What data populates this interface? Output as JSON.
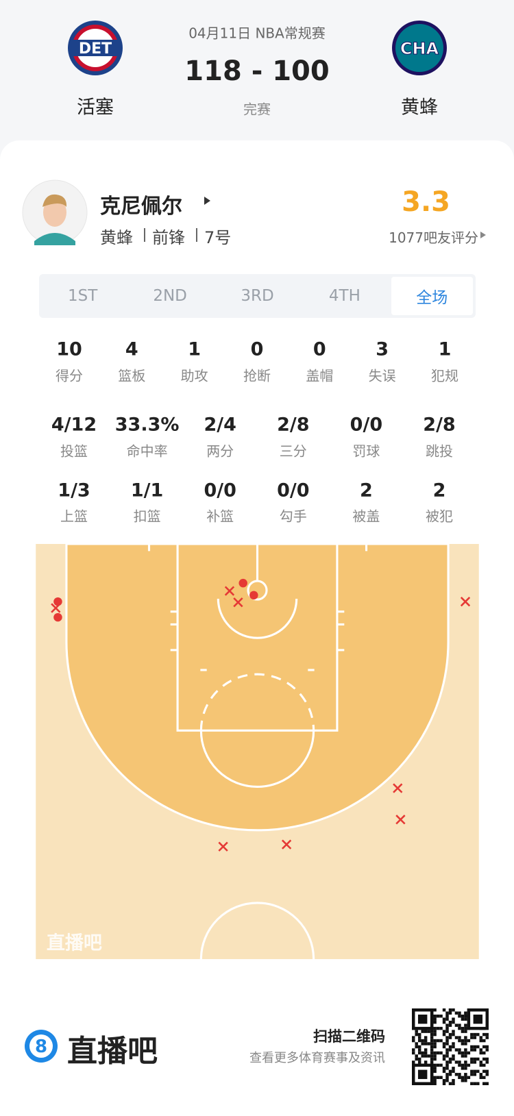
{
  "header": {
    "date": "04月11日 NBA常规赛",
    "score": "118 - 100",
    "status": "完赛",
    "home": {
      "abbr": "DET",
      "name": "活塞"
    },
    "away": {
      "abbr": "CHA",
      "name": "黄蜂"
    }
  },
  "player": {
    "name": "克尼佩尔",
    "team": "黄蜂",
    "position": "前锋",
    "number": "7号",
    "rating": "3.3",
    "rating_label": "1077吧友评分"
  },
  "tabs": {
    "items": [
      "1ST",
      "2ND",
      "3RD",
      "4TH",
      "全场"
    ],
    "active": 4
  },
  "stats": {
    "rows": [
      [
        {
          "value": "10",
          "label": "得分"
        },
        {
          "value": "4",
          "label": "篮板"
        },
        {
          "value": "1",
          "label": "助攻"
        },
        {
          "value": "0",
          "label": "抢断"
        },
        {
          "value": "0",
          "label": "盖帽"
        },
        {
          "value": "3",
          "label": "失误"
        },
        {
          "value": "1",
          "label": "犯规"
        }
      ],
      [
        {
          "value": "4/12",
          "label": "投篮"
        },
        {
          "value": "33.3%",
          "label": "命中率"
        },
        {
          "value": "2/4",
          "label": "两分"
        },
        {
          "value": "2/8",
          "label": "三分"
        },
        {
          "value": "0/0",
          "label": "罚球"
        },
        {
          "value": "2/8",
          "label": "跳投"
        }
      ],
      [
        {
          "value": "1/3",
          "label": "上篮"
        },
        {
          "value": "1/1",
          "label": "扣篮"
        },
        {
          "value": "0/0",
          "label": "补篮"
        },
        {
          "value": "0/0",
          "label": "勾手"
        },
        {
          "value": "2",
          "label": "被盖"
        },
        {
          "value": "2",
          "label": "被犯"
        }
      ]
    ]
  },
  "court": {
    "watermark": "直播吧"
  },
  "footer": {
    "logo": "8",
    "brand": "直播吧",
    "scan": "扫描二维码",
    "tagline": "查看更多体育赛事及资讯"
  }
}
